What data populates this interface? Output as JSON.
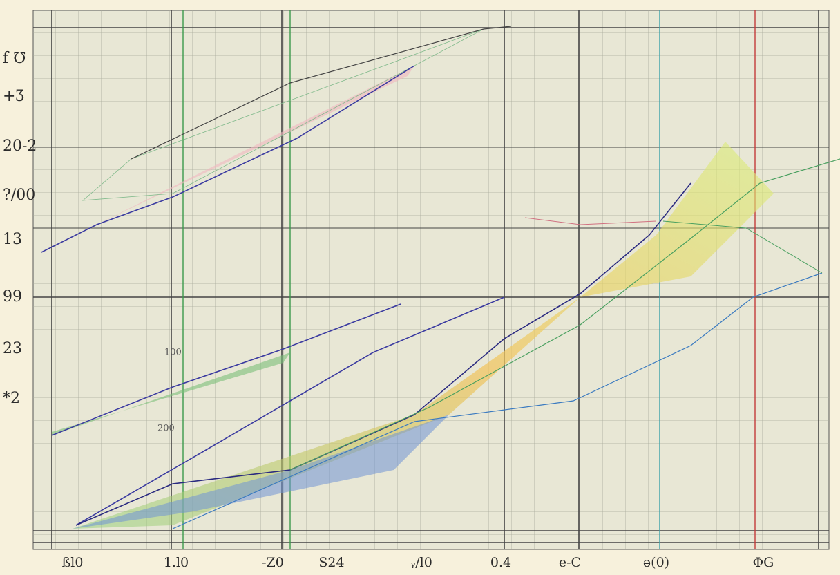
{
  "chart_data": {
    "type": "line",
    "y_labels": [
      "f ℧",
      "+Ʒ",
      "20-2",
      "?/00",
      "13",
      "99",
      "23",
      "*2"
    ],
    "x_labels": [
      "ßl0",
      "1.l0",
      "-Z0",
      "S24",
      "ᵧ/l0",
      "0.4",
      "e-C",
      "ə(0)",
      "ΦG"
    ],
    "annotations": [
      "100",
      "200"
    ]
  }
}
